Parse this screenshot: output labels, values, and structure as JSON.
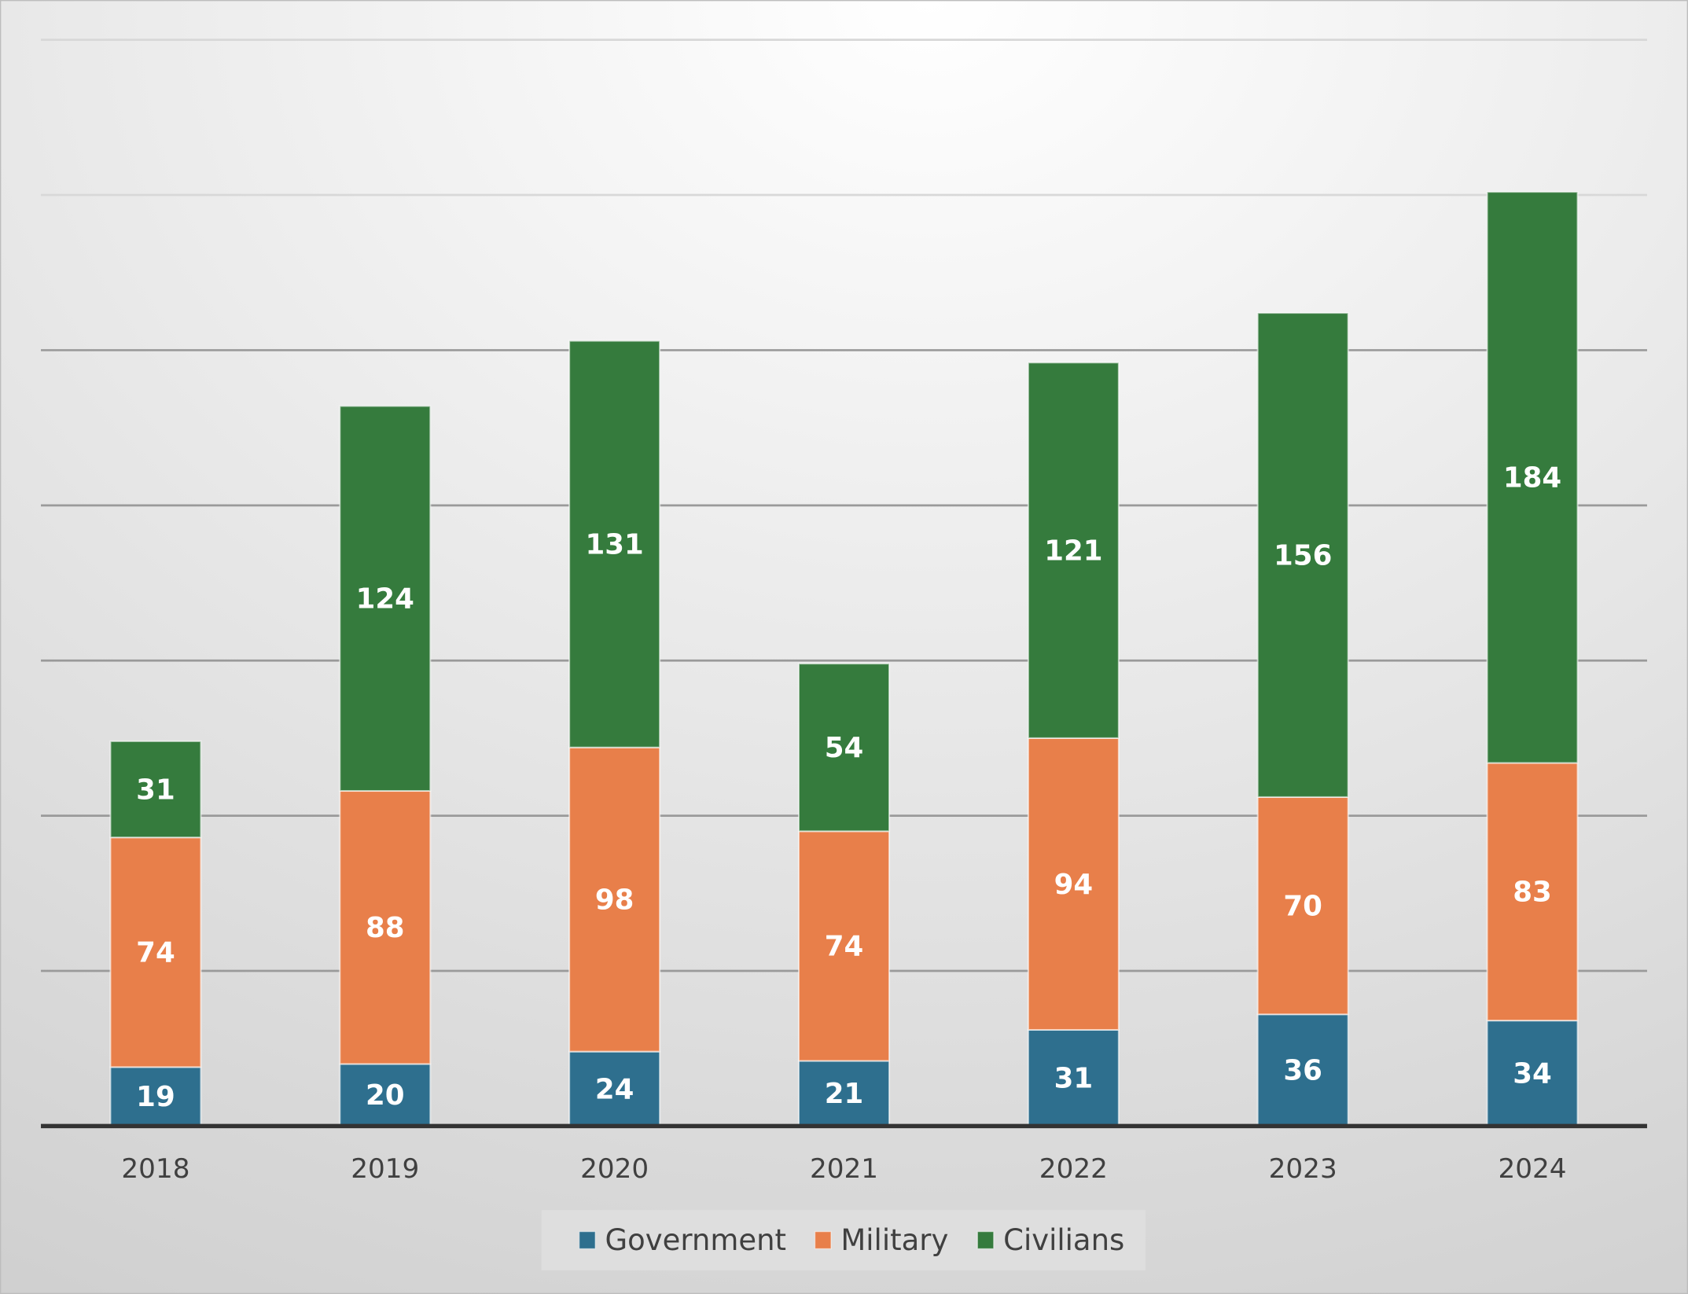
{
  "chart_data": {
    "type": "bar",
    "stacked": true,
    "title": "",
    "xlabel": "",
    "ylabel": "",
    "categories": [
      "2018",
      "2019",
      "2020",
      "2021",
      "2022",
      "2023",
      "2024"
    ],
    "series": [
      {
        "name": "Government",
        "color": "#2e6f8e",
        "values": [
          19,
          20,
          24,
          21,
          31,
          36,
          34
        ]
      },
      {
        "name": "Military",
        "color": "#e87f4a",
        "values": [
          74,
          88,
          98,
          74,
          94,
          70,
          83
        ]
      },
      {
        "name": "Civilians",
        "color": "#357b3d",
        "values": [
          31,
          124,
          131,
          54,
          121,
          156,
          184
        ]
      }
    ],
    "ylim": [
      0,
      350
    ],
    "ytick_step": 50,
    "grid": true,
    "y_axis_labels_shown": false,
    "data_labels": true,
    "legend_position": "bottom"
  }
}
